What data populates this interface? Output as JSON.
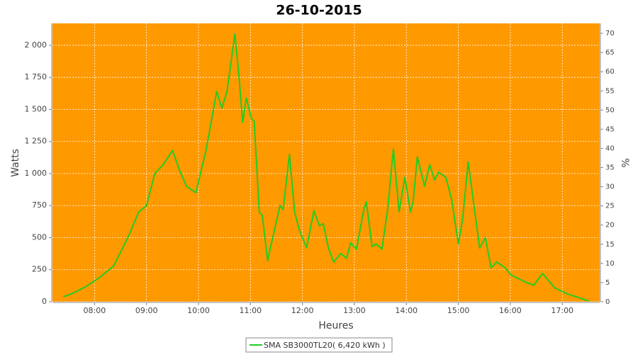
{
  "chart_data": {
    "type": "line",
    "title": "26-10-2015",
    "x_label": "Heures",
    "y_label": "Watts",
    "y2_label": "%",
    "x": [
      7.4,
      7.55,
      7.82,
      8.1,
      8.37,
      8.64,
      8.85,
      9.0,
      9.16,
      9.32,
      9.5,
      9.63,
      9.77,
      9.95,
      10.15,
      10.35,
      10.45,
      10.55,
      10.7,
      10.77,
      10.85,
      10.92,
      11.02,
      11.07,
      11.17,
      11.23,
      11.33,
      11.4,
      11.57,
      11.63,
      11.75,
      11.85,
      11.94,
      12.08,
      12.22,
      12.33,
      12.4,
      12.5,
      12.6,
      12.74,
      12.85,
      12.93,
      13.04,
      13.18,
      13.23,
      13.34,
      13.42,
      13.53,
      13.64,
      13.75,
      13.86,
      13.97,
      14.08,
      14.13,
      14.21,
      14.35,
      14.45,
      14.54,
      14.62,
      14.76,
      14.87,
      15.0,
      15.08,
      15.19,
      15.3,
      15.41,
      15.52,
      15.63,
      15.74,
      15.9,
      16.01,
      16.28,
      16.45,
      16.62,
      16.85,
      17.1,
      17.3,
      17.51
    ],
    "series": [
      {
        "name": "SMA SB3000TL20( 6,420 kWh )",
        "color": "#22cc22",
        "values": [
          40,
          60,
          115,
          190,
          280,
          500,
          700,
          750,
          1000,
          1070,
          1180,
          1030,
          900,
          850,
          1190,
          1640,
          1510,
          1640,
          2090,
          1800,
          1400,
          1590,
          1425,
          1410,
          700,
          670,
          320,
          450,
          750,
          720,
          1150,
          700,
          560,
          420,
          710,
          590,
          610,
          420,
          310,
          375,
          340,
          460,
          410,
          720,
          780,
          430,
          450,
          410,
          720,
          1190,
          700,
          970,
          700,
          780,
          1130,
          900,
          1070,
          950,
          1010,
          970,
          800,
          450,
          640,
          1090,
          750,
          420,
          500,
          265,
          310,
          265,
          210,
          155,
          130,
          220,
          110,
          60,
          35,
          5
        ]
      }
    ],
    "xlim": [
      7.19,
      17.72
    ],
    "xticks": [
      {
        "value": 8,
        "label": "08:00"
      },
      {
        "value": 9,
        "label": "09:00"
      },
      {
        "value": 10,
        "label": "10:00"
      },
      {
        "value": 11,
        "label": "11:00"
      },
      {
        "value": 12,
        "label": "12:00"
      },
      {
        "value": 13,
        "label": "13:00"
      },
      {
        "value": 14,
        "label": "14:00"
      },
      {
        "value": 15,
        "label": "15:00"
      },
      {
        "value": 16,
        "label": "16:00"
      },
      {
        "value": 17,
        "label": "17:00"
      }
    ],
    "ylim": [
      0,
      2171
    ],
    "yticks": [
      0,
      250,
      500,
      750,
      {
        "value": 1000,
        "label": "1 000"
      },
      {
        "value": 1250,
        "label": "1 250"
      },
      {
        "value": 1500,
        "label": "1 500"
      },
      {
        "value": 1750,
        "label": "1 750"
      },
      {
        "value": 2000,
        "label": "2 000"
      }
    ],
    "y2lim": [
      0,
      72.6
    ],
    "y2ticks": [
      0,
      5,
      10,
      15,
      20,
      25,
      30,
      35,
      40,
      45,
      50,
      55,
      60,
      65,
      70
    ],
    "grid": true,
    "plot_background": "#ff9900"
  }
}
